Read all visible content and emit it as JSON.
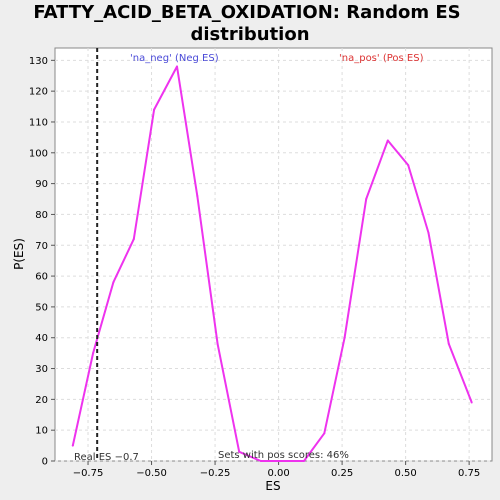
{
  "chart_data": {
    "type": "line",
    "title_line1": "FATTY_ACID_BETA_OXIDATION: Random ES",
    "title_line2": "distribution",
    "xlabel": "ES",
    "ylabel": "P(ES)",
    "xlim": [
      -0.88,
      0.84
    ],
    "ylim": [
      0,
      134
    ],
    "xticks": [
      -0.75,
      -0.5,
      -0.25,
      0.0,
      0.25,
      0.5,
      0.75
    ],
    "xtick_labels": [
      "−0.75",
      "−0.50",
      "−0.25",
      "0.00",
      "0.25",
      "0.50",
      "0.75"
    ],
    "yticks": [
      0,
      10,
      20,
      30,
      40,
      50,
      60,
      70,
      80,
      90,
      100,
      110,
      120,
      130
    ],
    "ytick_labels": [
      "0",
      "10",
      "20",
      "30",
      "40",
      "50",
      "60",
      "70",
      "80",
      "90",
      "100",
      "110",
      "120",
      "130"
    ],
    "grid": true,
    "series": [
      {
        "color": "#ee33ee",
        "x": [
          -0.81,
          -0.73,
          -0.65,
          -0.57,
          -0.49,
          -0.4,
          -0.32,
          -0.24,
          -0.155,
          -0.07,
          0.01,
          0.1,
          0.18,
          0.26,
          0.345,
          0.43,
          0.51,
          0.59,
          0.67,
          0.76
        ],
        "y": [
          5,
          35,
          58,
          72,
          114,
          128,
          86,
          38,
          3,
          0,
          0,
          0,
          9,
          40,
          85,
          104,
          96,
          74,
          38,
          19
        ]
      }
    ],
    "real_es": -0.714,
    "real_es_label": "Real ES −0.7",
    "neg_label": "'na_neg' (Neg ES)",
    "neg_color": "#4a4ad8",
    "pos_label": "'na_pos' (Pos ES)",
    "pos_color": "#dd3333",
    "pos_scores_label": "Sets with pos scores: 46%"
  }
}
